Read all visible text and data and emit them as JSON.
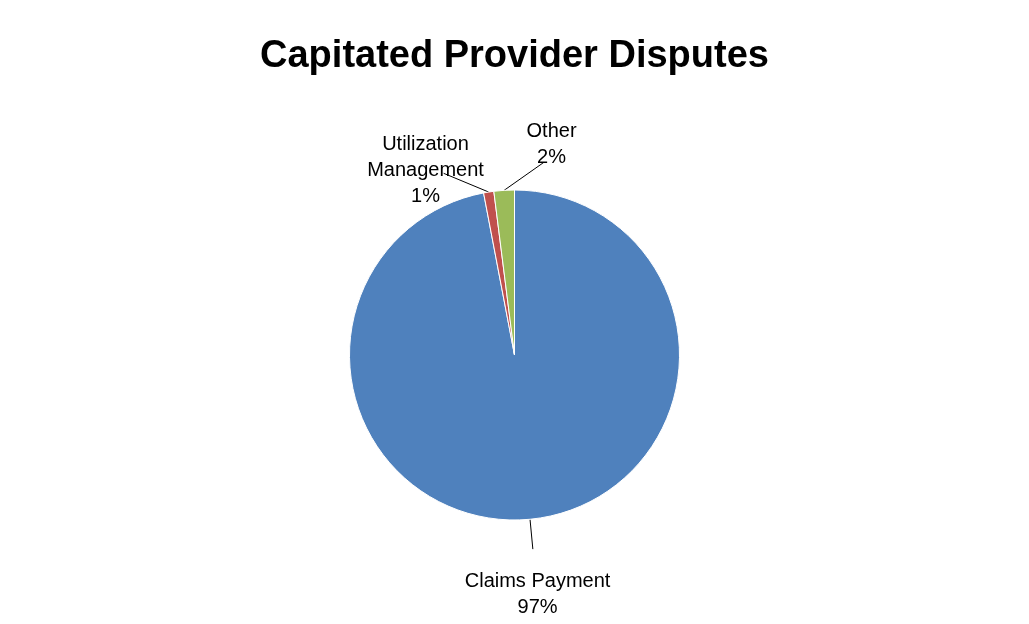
{
  "chart_data": {
    "type": "pie",
    "title": "Capitated Provider Disputes",
    "categories": [
      "Claims Payment",
      "Utilization Management",
      "Other"
    ],
    "values": [
      97,
      1,
      2
    ],
    "colors": [
      "#4f81bd",
      "#c0504d",
      "#9bbb59"
    ],
    "value_labels": [
      "97%",
      "1%",
      "2%"
    ],
    "legend": false
  }
}
